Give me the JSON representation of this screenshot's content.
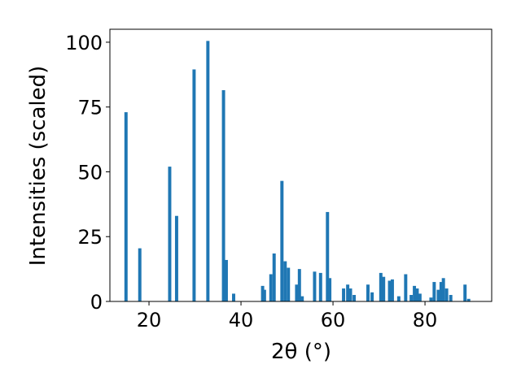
{
  "chart_data": {
    "type": "bar",
    "xlabel": "2θ (°)",
    "ylabel": "Intensities (scaled)",
    "xlim": [
      11.5,
      94.5
    ],
    "ylim": [
      0,
      105
    ],
    "xticks": [
      20,
      40,
      60,
      80
    ],
    "yticks": [
      0,
      25,
      50,
      75,
      100
    ],
    "grid": false,
    "bar_color": "#1f77b4",
    "bar_width": 0.7,
    "x": [
      15.0,
      18.0,
      24.5,
      26.0,
      29.8,
      32.8,
      36.2,
      36.8,
      38.4,
      44.7,
      45.1,
      46.5,
      47.2,
      48.9,
      49.6,
      50.3,
      52.1,
      52.7,
      53.3,
      56.0,
      57.3,
      58.8,
      59.3,
      62.3,
      63.2,
      63.8,
      64.6,
      67.6,
      68.5,
      70.4,
      71.0,
      72.3,
      72.9,
      74.3,
      75.8,
      77.0,
      77.7,
      78.3,
      78.9,
      81.3,
      82.0,
      82.9,
      83.5,
      84.0,
      84.7,
      85.6,
      88.7,
      89.5
    ],
    "values": [
      73,
      20.5,
      52,
      33,
      89.5,
      100.5,
      81.5,
      16,
      3,
      6,
      4.5,
      10.5,
      18.5,
      46.5,
      15.5,
      13,
      6.5,
      12.5,
      2,
      11.5,
      11,
      34.5,
      9,
      5,
      6.5,
      5,
      2.5,
      6.5,
      3.5,
      11,
      9.5,
      8,
      8.5,
      2,
      10.5,
      2.5,
      6,
      5,
      3,
      1.5,
      7.5,
      4.5,
      7.5,
      9,
      5,
      2.5,
      6.5,
      1
    ]
  }
}
